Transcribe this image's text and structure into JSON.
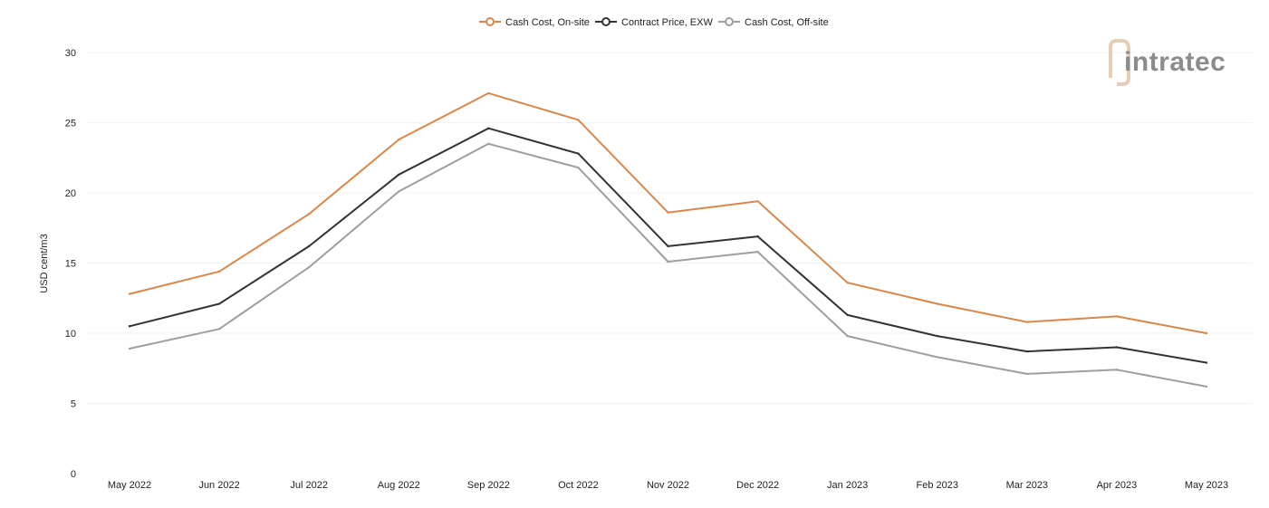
{
  "chart_data": {
    "type": "line",
    "title": "",
    "xlabel": "",
    "ylabel": "USD cent/m3",
    "ylim": [
      0,
      30
    ],
    "yticks": [
      0,
      5,
      10,
      15,
      20,
      25,
      30
    ],
    "grid": true,
    "legend_position": "top-center",
    "categories": [
      "May 2022",
      "Jun 2022",
      "Jul 2022",
      "Aug 2022",
      "Sep 2022",
      "Oct 2022",
      "Nov 2022",
      "Dec 2022",
      "Jan 2023",
      "Feb 2023",
      "Mar 2023",
      "Apr 2023",
      "May 2023"
    ],
    "series": [
      {
        "name": "Cash Cost, On-site",
        "color": "#d9874a",
        "values": [
          12.8,
          14.4,
          18.5,
          23.8,
          27.1,
          25.2,
          18.6,
          19.4,
          13.6,
          12.1,
          10.8,
          11.2,
          10.0
        ]
      },
      {
        "name": "Contract Price, EXW",
        "color": "#333333",
        "values": [
          10.5,
          12.1,
          16.2,
          21.3,
          24.6,
          22.8,
          16.2,
          16.9,
          11.3,
          9.8,
          8.7,
          9.0,
          7.9
        ]
      },
      {
        "name": "Cash Cost, Off-site",
        "color": "#9e9e9e",
        "values": [
          8.9,
          10.3,
          14.7,
          20.1,
          23.5,
          21.8,
          15.1,
          15.8,
          9.8,
          8.3,
          7.1,
          7.4,
          6.2
        ]
      }
    ]
  },
  "watermark": {
    "text": "intratec",
    "colors": {
      "text": "#8c8c8c",
      "mark": "#e6cdb5"
    }
  }
}
